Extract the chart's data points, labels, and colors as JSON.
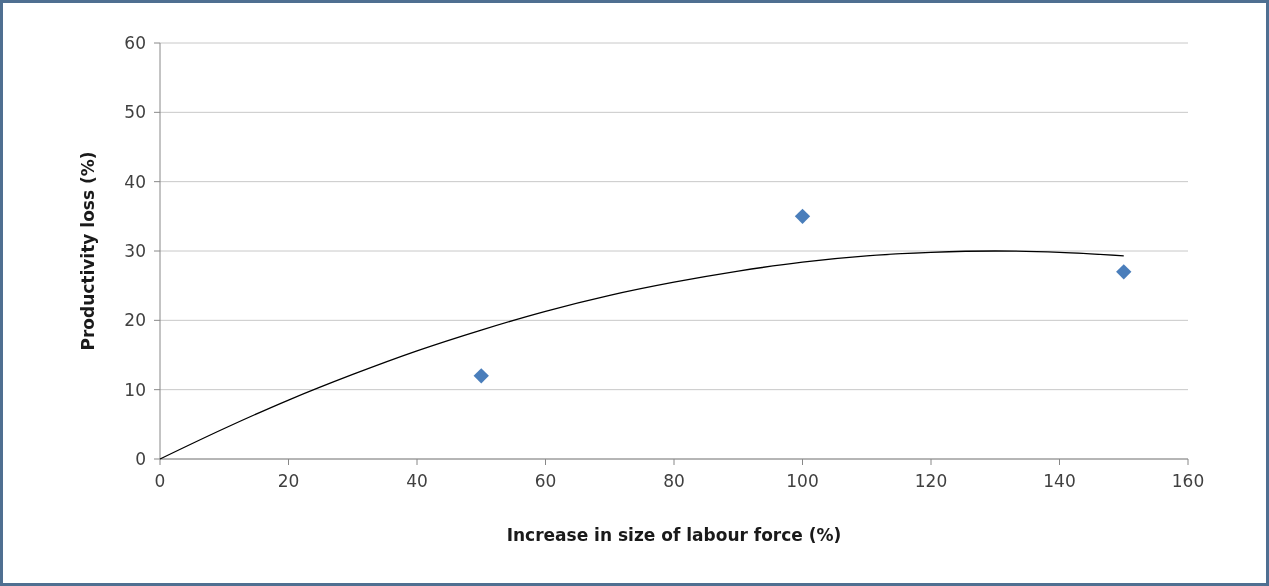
{
  "chart_data": {
    "type": "scatter",
    "xlabel": "Increase in size of labour force (%)",
    "ylabel": "Productivity loss (%)",
    "xlim": [
      0,
      160
    ],
    "xticks": [
      0,
      20,
      40,
      60,
      80,
      100,
      120,
      140,
      160
    ],
    "ylim": [
      0,
      60
    ],
    "yticks": [
      0,
      10,
      20,
      30,
      40,
      50,
      60
    ],
    "grid": "y",
    "marker": "diamond",
    "series": [
      {
        "color": "#4a7ebb",
        "x": [
          50,
          100,
          150
        ],
        "values": [
          12,
          35,
          27
        ]
      },
      {
        "type": "line",
        "color": "#000000",
        "marker": "none",
        "line_style": "solid",
        "x": [
          0,
          10,
          20,
          30,
          40,
          50,
          60,
          70,
          80,
          90,
          100,
          110,
          120,
          130,
          140,
          150
        ],
        "values": [
          0,
          4.4,
          8.5,
          12.2,
          15.6,
          18.6,
          21.3,
          23.6,
          25.5,
          27.1,
          28.4,
          29.3,
          29.8,
          30,
          29.8,
          29.3
        ]
      }
    ]
  }
}
